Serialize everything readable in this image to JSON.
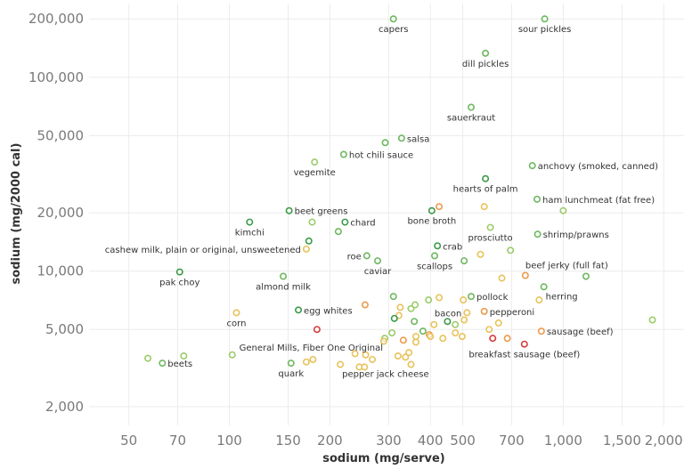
{
  "chart_data": {
    "type": "scatter",
    "xlabel": "sodium (mg/serve)",
    "ylabel": "sodium (mg/2000 cal)",
    "x_scale": "log",
    "y_scale": "log",
    "xlim": [
      38,
      2300
    ],
    "ylim": [
      1600,
      240000
    ],
    "x_ticks": [
      {
        "value": 50,
        "label": "50"
      },
      {
        "value": 70,
        "label": "70"
      },
      {
        "value": 100,
        "label": "100"
      },
      {
        "value": 150,
        "label": "150"
      },
      {
        "value": 200,
        "label": "200"
      },
      {
        "value": 300,
        "label": "300"
      },
      {
        "value": 400,
        "label": "400"
      },
      {
        "value": 500,
        "label": "500"
      },
      {
        "value": 700,
        "label": "700"
      },
      {
        "value": 1000,
        "label": "1,000"
      },
      {
        "value": 1500,
        "label": "1,500"
      },
      {
        "value": 2000,
        "label": "2,000"
      }
    ],
    "y_ticks": [
      {
        "value": 2000,
        "label": "2,000"
      },
      {
        "value": 5000,
        "label": "5,000"
      },
      {
        "value": 10000,
        "label": "10,000"
      },
      {
        "value": 20000,
        "label": "20,000"
      },
      {
        "value": 50000,
        "label": "50,000"
      },
      {
        "value": 100000,
        "label": "100,000"
      },
      {
        "value": 200000,
        "label": "200,000"
      }
    ],
    "colors": {
      "dark_green": "#3d9a4a",
      "green": "#6db85f",
      "light_green": "#9ccb6b",
      "yellow": "#e8c25a",
      "orange": "#ec9a4c",
      "red": "#d63c3c"
    },
    "points": [
      {
        "x": 310,
        "y": 200000,
        "color": "green",
        "label": "capers",
        "pos": "below"
      },
      {
        "x": 880,
        "y": 200000,
        "color": "green",
        "label": "sour pickles",
        "pos": "below"
      },
      {
        "x": 585,
        "y": 133000,
        "color": "green",
        "label": "dill pickles",
        "pos": "below"
      },
      {
        "x": 530,
        "y": 70000,
        "color": "green",
        "label": "sauerkraut",
        "pos": "below"
      },
      {
        "x": 328,
        "y": 48500,
        "color": "green",
        "label": "salsa",
        "pos": "right"
      },
      {
        "x": 293,
        "y": 46000,
        "color": "green",
        "label": "",
        "pos": "none"
      },
      {
        "x": 220,
        "y": 40000,
        "color": "green",
        "label": "hot chili sauce",
        "pos": "right"
      },
      {
        "x": 180,
        "y": 36500,
        "color": "light_green",
        "label": "vegemite",
        "pos": "below"
      },
      {
        "x": 808,
        "y": 35000,
        "color": "green",
        "label": "anchovy (smoked, canned)",
        "pos": "right"
      },
      {
        "x": 585,
        "y": 30000,
        "color": "dark_green",
        "label": "hearts of palm",
        "pos": "below"
      },
      {
        "x": 835,
        "y": 23500,
        "color": "green",
        "label": "ham lunchmeat (fat free)",
        "pos": "right"
      },
      {
        "x": 1000,
        "y": 20500,
        "color": "light_green",
        "label": "",
        "pos": "none"
      },
      {
        "x": 425,
        "y": 21500,
        "color": "orange",
        "label": "",
        "pos": "none"
      },
      {
        "x": 580,
        "y": 21500,
        "color": "yellow",
        "label": "",
        "pos": "none"
      },
      {
        "x": 404,
        "y": 20500,
        "color": "dark_green",
        "label": "bone broth",
        "pos": "below"
      },
      {
        "x": 151,
        "y": 20500,
        "color": "dark_green",
        "label": "beet greens",
        "pos": "right"
      },
      {
        "x": 115,
        "y": 17900,
        "color": "dark_green",
        "label": "kimchi",
        "pos": "below"
      },
      {
        "x": 177,
        "y": 17900,
        "color": "light_green",
        "label": "",
        "pos": "none"
      },
      {
        "x": 222,
        "y": 17900,
        "color": "dark_green",
        "label": "chard",
        "pos": "right"
      },
      {
        "x": 212,
        "y": 16000,
        "color": "green",
        "label": "",
        "pos": "none"
      },
      {
        "x": 605,
        "y": 16800,
        "color": "light_green",
        "label": "prosciutto",
        "pos": "below"
      },
      {
        "x": 838,
        "y": 15500,
        "color": "green",
        "label": "shrimp/prawns",
        "pos": "right"
      },
      {
        "x": 173,
        "y": 14300,
        "color": "dark_green",
        "label": "",
        "pos": "none"
      },
      {
        "x": 420,
        "y": 13500,
        "color": "dark_green",
        "label": "crab",
        "pos": "right"
      },
      {
        "x": 170,
        "y": 13000,
        "color": "yellow",
        "label": "cashew milk, plain or original, unsweetened",
        "pos": "left"
      },
      {
        "x": 695,
        "y": 12800,
        "color": "light_green",
        "label": "",
        "pos": "none"
      },
      {
        "x": 565,
        "y": 12200,
        "color": "yellow",
        "label": "",
        "pos": "none"
      },
      {
        "x": 258,
        "y": 12000,
        "color": "green",
        "label": "roe",
        "pos": "left"
      },
      {
        "x": 278,
        "y": 11300,
        "color": "green",
        "label": "caviar",
        "pos": "below"
      },
      {
        "x": 412,
        "y": 12000,
        "color": "green",
        "label": "scallops",
        "pos": "below"
      },
      {
        "x": 505,
        "y": 11300,
        "color": "green",
        "label": "",
        "pos": "none"
      },
      {
        "x": 71,
        "y": 9900,
        "color": "dark_green",
        "label": "pak choy",
        "pos": "below"
      },
      {
        "x": 145,
        "y": 9400,
        "color": "green",
        "label": "almond milk",
        "pos": "below"
      },
      {
        "x": 770,
        "y": 9500,
        "color": "orange",
        "label": "beef jerky (full fat)",
        "pos": "aboveright"
      },
      {
        "x": 1170,
        "y": 9400,
        "color": "green",
        "label": "",
        "pos": "none"
      },
      {
        "x": 655,
        "y": 9200,
        "color": "yellow",
        "label": "",
        "pos": "none"
      },
      {
        "x": 875,
        "y": 8300,
        "color": "green",
        "label": "herring",
        "pos": "belowright"
      },
      {
        "x": 310,
        "y": 7400,
        "color": "green",
        "label": "",
        "pos": "none"
      },
      {
        "x": 530,
        "y": 7400,
        "color": "green",
        "label": "pollock",
        "pos": "right"
      },
      {
        "x": 425,
        "y": 7300,
        "color": "yellow",
        "label": "",
        "pos": "none"
      },
      {
        "x": 395,
        "y": 7100,
        "color": "light_green",
        "label": "",
        "pos": "none"
      },
      {
        "x": 502,
        "y": 7100,
        "color": "yellow",
        "label": "",
        "pos": "none"
      },
      {
        "x": 847,
        "y": 7100,
        "color": "yellow",
        "label": "",
        "pos": "none"
      },
      {
        "x": 255,
        "y": 6700,
        "color": "orange",
        "label": "",
        "pos": "none"
      },
      {
        "x": 360,
        "y": 6700,
        "color": "light_green",
        "label": "",
        "pos": "none"
      },
      {
        "x": 325,
        "y": 6500,
        "color": "yellow",
        "label": "",
        "pos": "none"
      },
      {
        "x": 350,
        "y": 6400,
        "color": "light_green",
        "label": "",
        "pos": "none"
      },
      {
        "x": 161,
        "y": 6300,
        "color": "dark_green",
        "label": "egg whites",
        "pos": "right"
      },
      {
        "x": 580,
        "y": 6200,
        "color": "orange",
        "label": "pepperoni",
        "pos": "right"
      },
      {
        "x": 105,
        "y": 6100,
        "color": "yellow",
        "label": "corn",
        "pos": "below"
      },
      {
        "x": 515,
        "y": 6100,
        "color": "yellow",
        "label": "bacon",
        "pos": "left"
      },
      {
        "x": 322,
        "y": 5900,
        "color": "yellow",
        "label": "",
        "pos": "none"
      },
      {
        "x": 312,
        "y": 5700,
        "color": "dark_green",
        "label": "",
        "pos": "none"
      },
      {
        "x": 505,
        "y": 5600,
        "color": "yellow",
        "label": "",
        "pos": "none"
      },
      {
        "x": 358,
        "y": 5500,
        "color": "green",
        "label": "",
        "pos": "none"
      },
      {
        "x": 450,
        "y": 5500,
        "color": "dark_green",
        "label": "",
        "pos": "none"
      },
      {
        "x": 1850,
        "y": 5600,
        "color": "light_green",
        "label": "",
        "pos": "none"
      },
      {
        "x": 640,
        "y": 5400,
        "color": "yellow",
        "label": "",
        "pos": "none"
      },
      {
        "x": 410,
        "y": 5300,
        "color": "yellow",
        "label": "",
        "pos": "none"
      },
      {
        "x": 475,
        "y": 5300,
        "color": "light_green",
        "label": "",
        "pos": "none"
      },
      {
        "x": 183,
        "y": 5000,
        "color": "red",
        "label": "",
        "pos": "none"
      },
      {
        "x": 600,
        "y": 5000,
        "color": "yellow",
        "label": "",
        "pos": "none"
      },
      {
        "x": 860,
        "y": 4900,
        "color": "orange",
        "label": "sausage (beef)",
        "pos": "right"
      },
      {
        "x": 380,
        "y": 4900,
        "color": "green",
        "label": "",
        "pos": "none"
      },
      {
        "x": 307,
        "y": 4800,
        "color": "light_green",
        "label": "",
        "pos": "none"
      },
      {
        "x": 397,
        "y": 4700,
        "color": "orange",
        "label": "",
        "pos": "none"
      },
      {
        "x": 475,
        "y": 4800,
        "color": "yellow",
        "label": "",
        "pos": "none"
      },
      {
        "x": 362,
        "y": 4600,
        "color": "yellow",
        "label": "",
        "pos": "none"
      },
      {
        "x": 400,
        "y": 4600,
        "color": "yellow",
        "label": "",
        "pos": "none"
      },
      {
        "x": 436,
        "y": 4500,
        "color": "yellow",
        "label": "",
        "pos": "none"
      },
      {
        "x": 498,
        "y": 4600,
        "color": "yellow",
        "label": "",
        "pos": "none"
      },
      {
        "x": 615,
        "y": 4500,
        "color": "red",
        "label": "",
        "pos": "none"
      },
      {
        "x": 680,
        "y": 4500,
        "color": "orange",
        "label": "",
        "pos": "none"
      },
      {
        "x": 292,
        "y": 4500,
        "color": "light_green",
        "label": "General Mills, Fiber One Original",
        "pos": "leftbelow"
      },
      {
        "x": 332,
        "y": 4400,
        "color": "orange",
        "label": "",
        "pos": "none"
      },
      {
        "x": 290,
        "y": 4350,
        "color": "yellow",
        "label": "",
        "pos": "none"
      },
      {
        "x": 362,
        "y": 4300,
        "color": "yellow",
        "label": "",
        "pos": "none"
      },
      {
        "x": 765,
        "y": 4200,
        "color": "red",
        "label": "breakfast sausage (beef)",
        "pos": "below"
      },
      {
        "x": 345,
        "y": 3800,
        "color": "yellow",
        "label": "",
        "pos": "none"
      },
      {
        "x": 238,
        "y": 3750,
        "color": "yellow",
        "label": "",
        "pos": "none"
      },
      {
        "x": 256,
        "y": 3700,
        "color": "yellow",
        "label": "",
        "pos": "none"
      },
      {
        "x": 320,
        "y": 3650,
        "color": "yellow",
        "label": "",
        "pos": "none"
      },
      {
        "x": 337,
        "y": 3600,
        "color": "yellow",
        "label": "",
        "pos": "none"
      },
      {
        "x": 102,
        "y": 3700,
        "color": "light_green",
        "label": "",
        "pos": "none"
      },
      {
        "x": 73,
        "y": 3650,
        "color": "light_green",
        "label": "",
        "pos": "none"
      },
      {
        "x": 57,
        "y": 3550,
        "color": "light_green",
        "label": "",
        "pos": "none"
      },
      {
        "x": 63,
        "y": 3350,
        "color": "green",
        "label": "beets",
        "pos": "right"
      },
      {
        "x": 153,
        "y": 3350,
        "color": "green",
        "label": "quark",
        "pos": "below"
      },
      {
        "x": 178,
        "y": 3500,
        "color": "yellow",
        "label": "",
        "pos": "none"
      },
      {
        "x": 170,
        "y": 3400,
        "color": "yellow",
        "label": "",
        "pos": "none"
      },
      {
        "x": 268,
        "y": 3500,
        "color": "yellow",
        "label": "",
        "pos": "none"
      },
      {
        "x": 215,
        "y": 3300,
        "color": "yellow",
        "label": "pepper jack cheese",
        "pos": "belowright"
      },
      {
        "x": 245,
        "y": 3200,
        "color": "yellow",
        "label": "",
        "pos": "none"
      },
      {
        "x": 254,
        "y": 3200,
        "color": "yellow",
        "label": "",
        "pos": "none"
      },
      {
        "x": 350,
        "y": 3300,
        "color": "yellow",
        "label": "",
        "pos": "none"
      }
    ]
  }
}
